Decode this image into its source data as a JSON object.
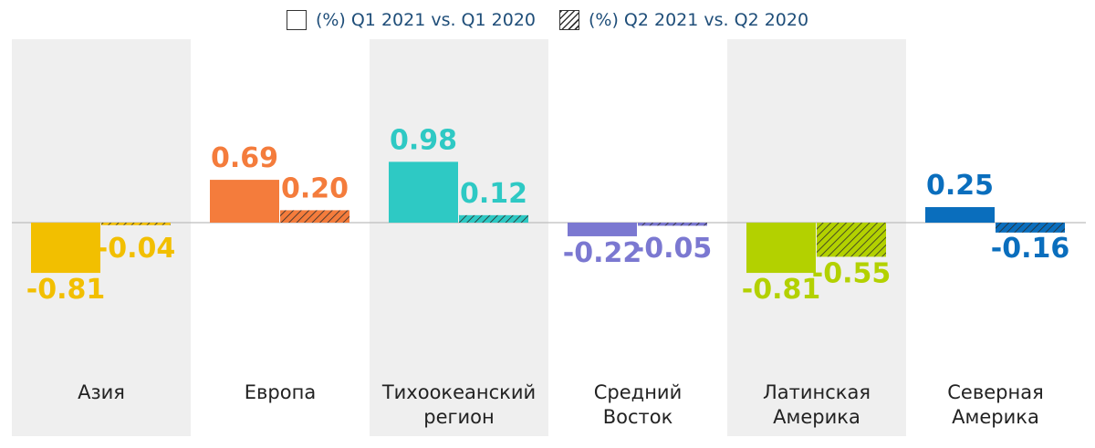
{
  "legend": {
    "q1_label": "(%) Q1 2021 vs. Q1 2020",
    "q2_label": "(%) Q2 2021 vs. Q2 2020"
  },
  "chart_data": {
    "type": "bar",
    "categories": [
      "Азия",
      "Европа",
      "Тихоокеанский регион",
      "Средний Восток",
      "Латинская Америка",
      "Северная Америка"
    ],
    "category_lines": [
      [
        "Азия"
      ],
      [
        "Европа"
      ],
      [
        "Тихоокеанский",
        "регион"
      ],
      [
        "Средний",
        "Восток"
      ],
      [
        "Латинская",
        "Америка"
      ],
      [
        "Северная",
        "Америка"
      ]
    ],
    "series": [
      {
        "name": "(%) Q1 2021 vs. Q1 2020",
        "pattern": "solid",
        "values": [
          -0.81,
          0.69,
          0.98,
          -0.22,
          -0.81,
          0.25
        ]
      },
      {
        "name": "(%) Q2 2021 vs. Q2 2020",
        "pattern": "hatched",
        "values": [
          -0.04,
          0.2,
          0.12,
          -0.05,
          -0.55,
          -0.16
        ]
      }
    ],
    "value_labels": [
      [
        "-0.81",
        "0.69",
        "0.98",
        "-0.22",
        "-0.81",
        "0.25"
      ],
      [
        "-0.04",
        "0.20",
        "0.12",
        "-0.05",
        "-0.55",
        "-0.16"
      ]
    ],
    "colors": [
      "#f2bf00",
      "#f47c3c",
      "#2ec9c4",
      "#7b78d1",
      "#b3d100",
      "#0a6ebd"
    ],
    "band_color": "#efefef",
    "zero_line_color": "#bdbdbd",
    "grid": false,
    "legend_position": "top",
    "ylim": [
      -1.5,
      1.5
    ]
  }
}
